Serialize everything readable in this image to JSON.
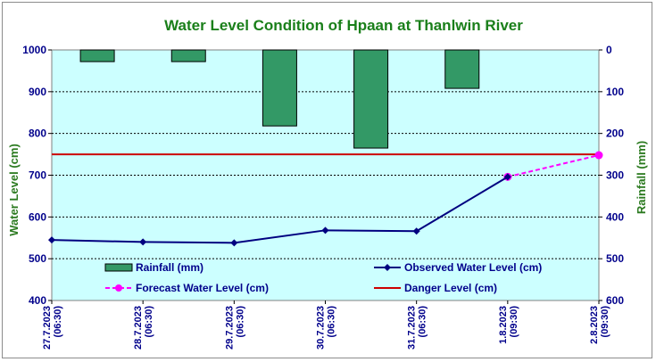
{
  "chart_data": {
    "type": "line",
    "title": "Water Level Condition of Hpaan at Thanlwin River",
    "ylabel_left": "Water Level (cm)",
    "ylabel_right": "Rainfall (mm)",
    "ylim_left": [
      400,
      1000
    ],
    "ylim_right": [
      0,
      600
    ],
    "right_axis_inverted": true,
    "left_ticks": [
      "1000",
      "900",
      "800",
      "700",
      "600",
      "500",
      "400"
    ],
    "right_ticks": [
      "0",
      "100",
      "200",
      "300",
      "400",
      "500",
      "600"
    ],
    "categories": [
      [
        "27.7.2023",
        "(06:30)"
      ],
      [
        "28.7.2023",
        "(06:30)"
      ],
      [
        "29.7.2023",
        "(06:30)"
      ],
      [
        "30.7.2023",
        "(06:30)"
      ],
      [
        "31.7.2023",
        "(06:30)"
      ],
      [
        "1.8.2023",
        "(09:30)"
      ],
      [
        "2.8.2023",
        "(09:30)"
      ]
    ],
    "rainfall": {
      "name": "Rainfall (mm)",
      "color": "#339966",
      "values": [
        28,
        28,
        182,
        235,
        92
      ]
    },
    "observed": {
      "name": "Observed Water Level (cm)",
      "color": "#000080",
      "values": [
        545,
        540,
        538,
        568,
        566,
        696
      ]
    },
    "forecast": {
      "name": "Forecast Water Level (cm)",
      "color": "#ff00ff",
      "values": [
        696,
        748
      ],
      "x_index": [
        5,
        6
      ]
    },
    "danger": {
      "name": "Danger Level (cm)",
      "color": "#cc0000",
      "value": 750
    },
    "plot_background": "#ccffff",
    "grid": true
  }
}
